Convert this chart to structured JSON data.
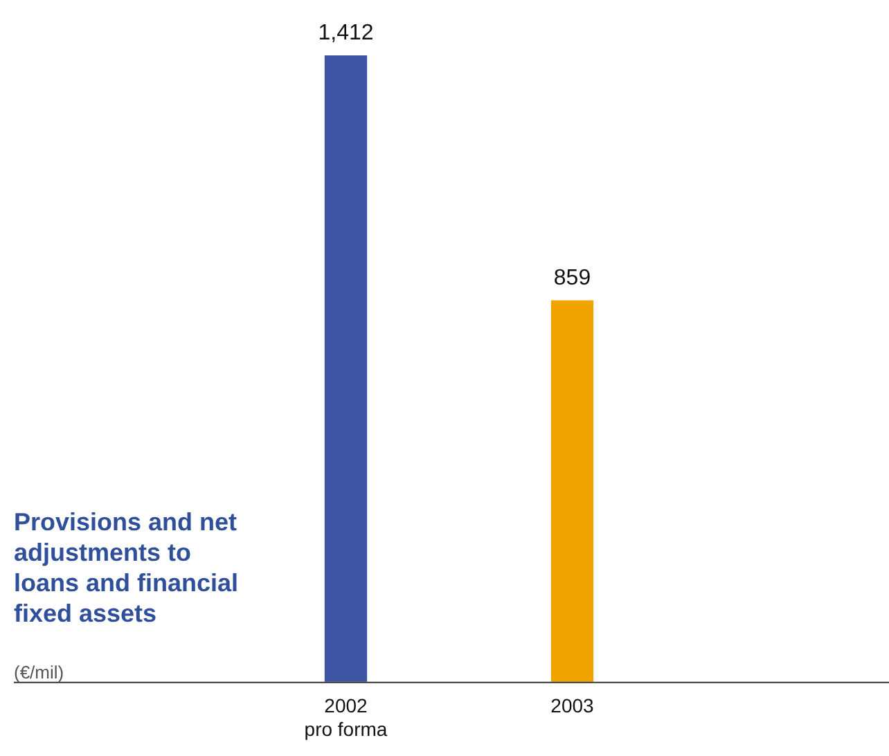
{
  "chart_data": {
    "type": "bar",
    "title": "Provisions and net adjustments to loans and financial fixed assets",
    "subtitle": "(€/mil)",
    "categories": [
      "2002\npro forma",
      "2003"
    ],
    "values": [
      1412,
      859
    ],
    "colors": [
      "#3d55a3",
      "#f0a400"
    ],
    "value_labels": [
      "1,412",
      "859"
    ],
    "grid": false,
    "legend": false
  }
}
